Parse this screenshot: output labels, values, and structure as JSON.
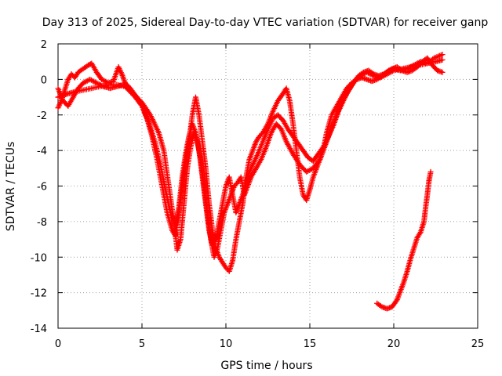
{
  "chart_data": {
    "type": "scatter",
    "title": "Day 313 of 2025, Sidereal Day-to-day VTEC variation (SDTVAR) for receiver ganp",
    "xlabel": "GPS time / hours",
    "ylabel": "SDTVAR / TECUs",
    "xlim": [
      0,
      25
    ],
    "ylim": [
      -14,
      2
    ],
    "xticks": [
      0,
      5,
      10,
      15,
      20,
      25
    ],
    "yticks": [
      -14,
      -12,
      -10,
      -8,
      -6,
      -4,
      -2,
      0,
      2
    ],
    "grid": true,
    "marker": "plus",
    "colors": {
      "series": "#ff0000",
      "grid": "#a0a0a0",
      "axis": "#000000"
    },
    "series": [
      {
        "name": "SDTVAR track 1",
        "points": [
          [
            0.0,
            -1.0
          ],
          [
            0.3,
            -0.9
          ],
          [
            0.6,
            -0.8
          ],
          [
            1.0,
            -0.7
          ],
          [
            1.5,
            -0.6
          ],
          [
            2.0,
            -0.5
          ],
          [
            2.5,
            -0.4
          ],
          [
            3.0,
            -0.3
          ],
          [
            3.5,
            -0.3
          ],
          [
            4.0,
            -0.4
          ],
          [
            4.5,
            -0.8
          ],
          [
            5.0,
            -1.3
          ],
          [
            5.5,
            -2.0
          ],
          [
            6.0,
            -3.0
          ],
          [
            6.3,
            -4.0
          ],
          [
            6.6,
            -6.0
          ],
          [
            6.9,
            -8.0
          ],
          [
            7.1,
            -9.6
          ],
          [
            7.3,
            -9.0
          ],
          [
            7.5,
            -7.0
          ],
          [
            7.7,
            -5.0
          ],
          [
            7.9,
            -3.8
          ],
          [
            8.1,
            -3.0
          ],
          [
            8.3,
            -3.5
          ],
          [
            8.5,
            -4.5
          ],
          [
            8.7,
            -6.0
          ],
          [
            8.9,
            -7.5
          ],
          [
            9.1,
            -9.0
          ],
          [
            9.3,
            -10.0
          ],
          [
            9.5,
            -9.5
          ],
          [
            9.7,
            -8.5
          ],
          [
            9.9,
            -7.5
          ],
          [
            10.1,
            -7.0
          ],
          [
            10.3,
            -6.5
          ],
          [
            10.5,
            -6.0
          ],
          [
            10.7,
            -5.8
          ],
          [
            10.9,
            -5.5
          ],
          [
            11.1,
            -6.5
          ],
          [
            11.3,
            -6.0
          ],
          [
            11.5,
            -5.5
          ],
          [
            11.8,
            -5.0
          ],
          [
            12.1,
            -4.5
          ],
          [
            12.4,
            -3.8
          ],
          [
            12.7,
            -3.0
          ],
          [
            13.0,
            -2.5
          ],
          [
            13.3,
            -2.8
          ],
          [
            13.6,
            -3.5
          ],
          [
            14.0,
            -4.2
          ],
          [
            14.4,
            -4.8
          ],
          [
            14.8,
            -5.2
          ],
          [
            15.2,
            -5.0
          ],
          [
            15.6,
            -4.5
          ],
          [
            16.0,
            -3.5
          ],
          [
            16.4,
            -2.5
          ],
          [
            16.8,
            -1.5
          ],
          [
            17.2,
            -0.8
          ],
          [
            17.6,
            -0.2
          ],
          [
            18.0,
            0.2
          ],
          [
            18.4,
            0.4
          ],
          [
            18.8,
            0.2
          ],
          [
            19.2,
            0.1
          ],
          [
            19.6,
            0.3
          ],
          [
            20.0,
            0.5
          ],
          [
            20.5,
            0.6
          ],
          [
            21.0,
            0.7
          ],
          [
            21.5,
            0.8
          ],
          [
            22.0,
            0.9
          ],
          [
            22.5,
            1.0
          ],
          [
            22.9,
            1.1
          ]
        ]
      },
      {
        "name": "SDTVAR track 2",
        "points": [
          [
            0.0,
            -1.6
          ],
          [
            0.2,
            -1.2
          ],
          [
            0.4,
            -0.6
          ],
          [
            0.6,
            0.0
          ],
          [
            0.8,
            0.3
          ],
          [
            1.0,
            0.1
          ],
          [
            1.2,
            0.4
          ],
          [
            1.5,
            0.6
          ],
          [
            1.8,
            0.8
          ],
          [
            2.0,
            0.9
          ],
          [
            2.3,
            0.4
          ],
          [
            2.6,
            0.0
          ],
          [
            3.0,
            -0.2
          ],
          [
            3.3,
            -0.1
          ],
          [
            3.6,
            0.7
          ],
          [
            3.8,
            0.3
          ],
          [
            4.0,
            -0.2
          ],
          [
            4.3,
            -0.5
          ],
          [
            4.6,
            -0.9
          ],
          [
            5.0,
            -1.5
          ],
          [
            5.3,
            -2.2
          ],
          [
            5.6,
            -3.2
          ],
          [
            5.9,
            -4.5
          ],
          [
            6.2,
            -6.0
          ],
          [
            6.5,
            -7.5
          ],
          [
            6.8,
            -8.5
          ],
          [
            7.0,
            -8.8
          ],
          [
            7.2,
            -7.5
          ],
          [
            7.4,
            -6.0
          ],
          [
            7.6,
            -4.5
          ],
          [
            7.8,
            -3.5
          ],
          [
            8.0,
            -2.0
          ],
          [
            8.2,
            -1.0
          ],
          [
            8.4,
            -2.0
          ],
          [
            8.6,
            -3.5
          ],
          [
            8.8,
            -5.0
          ],
          [
            9.0,
            -7.0
          ],
          [
            9.2,
            -8.5
          ],
          [
            9.4,
            -9.5
          ],
          [
            9.6,
            -10.0
          ],
          [
            9.8,
            -10.3
          ],
          [
            10.0,
            -10.6
          ],
          [
            10.2,
            -10.8
          ],
          [
            10.4,
            -10.2
          ],
          [
            10.6,
            -9.0
          ],
          [
            10.8,
            -8.0
          ],
          [
            11.0,
            -7.0
          ],
          [
            11.2,
            -5.5
          ],
          [
            11.4,
            -4.5
          ],
          [
            11.6,
            -4.0
          ],
          [
            11.8,
            -3.5
          ],
          [
            12.0,
            -3.2
          ],
          [
            12.2,
            -3.0
          ],
          [
            12.5,
            -2.5
          ],
          [
            12.8,
            -1.8
          ],
          [
            13.1,
            -1.2
          ],
          [
            13.4,
            -0.8
          ],
          [
            13.6,
            -0.5
          ],
          [
            13.8,
            -1.2
          ],
          [
            14.0,
            -2.5
          ],
          [
            14.2,
            -4.0
          ],
          [
            14.4,
            -5.5
          ],
          [
            14.6,
            -6.5
          ],
          [
            14.8,
            -6.8
          ],
          [
            15.0,
            -6.2
          ],
          [
            15.2,
            -5.5
          ],
          [
            15.4,
            -5.0
          ],
          [
            15.6,
            -4.5
          ],
          [
            15.8,
            -4.0
          ],
          [
            16.0,
            -3.0
          ],
          [
            16.3,
            -2.0
          ],
          [
            16.6,
            -1.5
          ],
          [
            16.9,
            -1.0
          ],
          [
            17.2,
            -0.5
          ],
          [
            17.5,
            -0.2
          ],
          [
            17.8,
            0.0
          ],
          [
            18.1,
            0.1
          ],
          [
            18.4,
            0.0
          ],
          [
            18.7,
            -0.1
          ],
          [
            19.0,
            0.0
          ],
          [
            19.3,
            0.2
          ],
          [
            19.6,
            0.4
          ],
          [
            19.9,
            0.6
          ],
          [
            20.2,
            0.7
          ],
          [
            20.5,
            0.5
          ],
          [
            20.8,
            0.4
          ],
          [
            21.1,
            0.5
          ],
          [
            21.4,
            0.7
          ],
          [
            21.7,
            1.0
          ],
          [
            22.0,
            1.2
          ],
          [
            22.3,
            0.8
          ],
          [
            22.6,
            0.5
          ],
          [
            22.9,
            0.4
          ]
        ]
      },
      {
        "name": "SDTVAR track 3",
        "points": [
          [
            0.0,
            -0.5
          ],
          [
            0.3,
            -1.2
          ],
          [
            0.6,
            -1.5
          ],
          [
            0.9,
            -1.0
          ],
          [
            1.2,
            -0.5
          ],
          [
            1.5,
            -0.2
          ],
          [
            1.9,
            0.0
          ],
          [
            2.3,
            -0.2
          ],
          [
            2.7,
            -0.4
          ],
          [
            3.1,
            -0.5
          ],
          [
            3.5,
            -0.4
          ],
          [
            3.9,
            -0.3
          ],
          [
            4.2,
            -0.6
          ],
          [
            4.6,
            -1.0
          ],
          [
            5.0,
            -1.5
          ],
          [
            5.4,
            -2.4
          ],
          [
            5.8,
            -3.6
          ],
          [
            6.1,
            -4.8
          ],
          [
            6.4,
            -6.2
          ],
          [
            6.7,
            -7.5
          ],
          [
            7.0,
            -8.2
          ],
          [
            7.2,
            -7.2
          ],
          [
            7.4,
            -5.5
          ],
          [
            7.6,
            -4.2
          ],
          [
            7.8,
            -3.2
          ],
          [
            8.0,
            -2.5
          ],
          [
            8.2,
            -3.0
          ],
          [
            8.4,
            -4.0
          ],
          [
            8.6,
            -5.5
          ],
          [
            8.8,
            -7.0
          ],
          [
            9.0,
            -8.5
          ],
          [
            9.2,
            -9.3
          ],
          [
            9.4,
            -9.0
          ],
          [
            9.6,
            -8.0
          ],
          [
            9.8,
            -7.0
          ],
          [
            10.0,
            -6.0
          ],
          [
            10.2,
            -5.5
          ],
          [
            10.4,
            -6.5
          ],
          [
            10.6,
            -7.5
          ],
          [
            10.8,
            -7.0
          ],
          [
            11.0,
            -6.5
          ],
          [
            11.2,
            -5.8
          ],
          [
            11.4,
            -5.2
          ],
          [
            11.6,
            -4.8
          ],
          [
            11.9,
            -4.2
          ],
          [
            12.2,
            -3.5
          ],
          [
            12.5,
            -2.8
          ],
          [
            12.8,
            -2.2
          ],
          [
            13.1,
            -2.0
          ],
          [
            13.4,
            -2.3
          ],
          [
            13.7,
            -2.8
          ],
          [
            14.0,
            -3.2
          ],
          [
            14.3,
            -3.6
          ],
          [
            14.6,
            -4.0
          ],
          [
            14.9,
            -4.4
          ],
          [
            15.2,
            -4.6
          ],
          [
            15.5,
            -4.2
          ],
          [
            15.8,
            -3.8
          ],
          [
            16.1,
            -3.2
          ],
          [
            16.4,
            -2.6
          ],
          [
            16.7,
            -1.8
          ],
          [
            17.0,
            -1.2
          ],
          [
            17.3,
            -0.6
          ],
          [
            17.6,
            -0.2
          ],
          [
            17.9,
            0.2
          ],
          [
            18.2,
            0.4
          ],
          [
            18.5,
            0.5
          ],
          [
            18.8,
            0.3
          ],
          [
            19.1,
            0.2
          ],
          [
            19.4,
            0.3
          ],
          [
            19.7,
            0.5
          ],
          [
            20.0,
            0.6
          ],
          [
            20.4,
            0.5
          ],
          [
            20.8,
            0.6
          ],
          [
            21.2,
            0.8
          ],
          [
            21.6,
            1.0
          ],
          [
            22.0,
            0.9
          ],
          [
            22.4,
            1.2
          ],
          [
            22.9,
            1.4
          ]
        ]
      },
      {
        "name": "SDTVAR track 4",
        "points": [
          [
            19.0,
            -12.6
          ],
          [
            19.3,
            -12.8
          ],
          [
            19.6,
            -12.9
          ],
          [
            19.9,
            -12.8
          ],
          [
            20.2,
            -12.4
          ],
          [
            20.4,
            -11.9
          ],
          [
            20.6,
            -11.4
          ],
          [
            20.8,
            -10.8
          ],
          [
            21.0,
            -10.1
          ],
          [
            21.2,
            -9.5
          ],
          [
            21.4,
            -8.9
          ],
          [
            21.6,
            -8.6
          ],
          [
            21.8,
            -8.0
          ],
          [
            21.9,
            -7.2
          ],
          [
            22.0,
            -6.5
          ],
          [
            22.1,
            -5.7
          ],
          [
            22.2,
            -5.2
          ]
        ]
      }
    ]
  }
}
